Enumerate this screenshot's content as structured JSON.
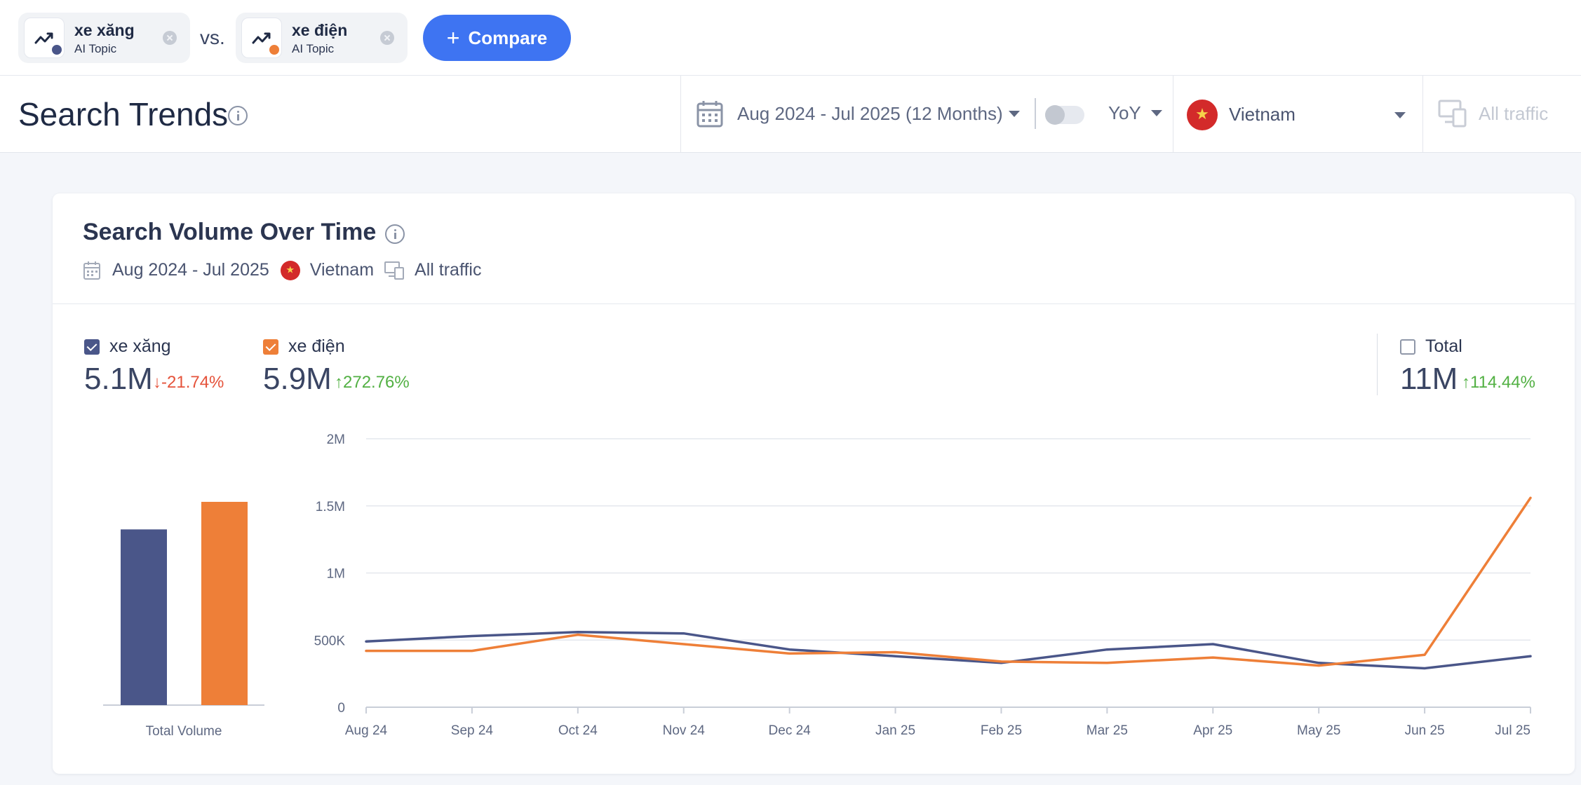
{
  "compare": {
    "topics": [
      {
        "name": "xe xăng",
        "type": "AI Topic",
        "color": "#4a5689"
      },
      {
        "name": "xe điện",
        "type": "AI Topic",
        "color": "#ee7f38"
      }
    ],
    "vs_label": "vs.",
    "compare_button": "Compare"
  },
  "header": {
    "title": "Search Trends",
    "date_range": "Aug 2024 - Jul 2025 (12 Months)",
    "yoy_label": "YoY",
    "country": "Vietnam",
    "traffic": "All traffic"
  },
  "card": {
    "title": "Search Volume Over Time",
    "meta_date": "Aug 2024 - Jul 2025",
    "meta_country": "Vietnam",
    "meta_traffic": "All traffic",
    "legend": [
      {
        "name": "xe xăng",
        "value": "5.1M",
        "change": "-21.74%",
        "direction": "down",
        "checked": true,
        "color": "#4a5689"
      },
      {
        "name": "xe điện",
        "value": "5.9M",
        "change": "272.76%",
        "direction": "up",
        "checked": true,
        "color": "#ee7f38"
      }
    ],
    "total": {
      "name": "Total",
      "value": "11M",
      "change": "114.44%",
      "direction": "up",
      "checked": false
    }
  },
  "chart_data": [
    {
      "type": "bar",
      "categories": [
        "xe xăng",
        "xe điện"
      ],
      "values": [
        5.1,
        5.9
      ],
      "xlabel": "Total Volume",
      "colors": [
        "#4a5689",
        "#ee7f38"
      ]
    },
    {
      "type": "line",
      "x": [
        "Aug 24",
        "Sep 24",
        "Oct 24",
        "Nov 24",
        "Dec 24",
        "Jan 25",
        "Feb 25",
        "Mar 25",
        "Apr 25",
        "May 25",
        "Jun 25",
        "Jul 25"
      ],
      "y_ticks": [
        "0",
        "500K",
        "1M",
        "1.5M",
        "2M"
      ],
      "ylim": [
        0,
        2000000
      ],
      "grid": true,
      "series": [
        {
          "name": "xe xăng",
          "color": "#4a5689",
          "values": [
            490000,
            530000,
            560000,
            550000,
            430000,
            380000,
            330000,
            430000,
            470000,
            330000,
            290000,
            380000
          ]
        },
        {
          "name": "xe điện",
          "color": "#ee7f38",
          "values": [
            420000,
            420000,
            540000,
            470000,
            400000,
            410000,
            340000,
            330000,
            370000,
            310000,
            390000,
            1560000
          ]
        }
      ]
    }
  ]
}
